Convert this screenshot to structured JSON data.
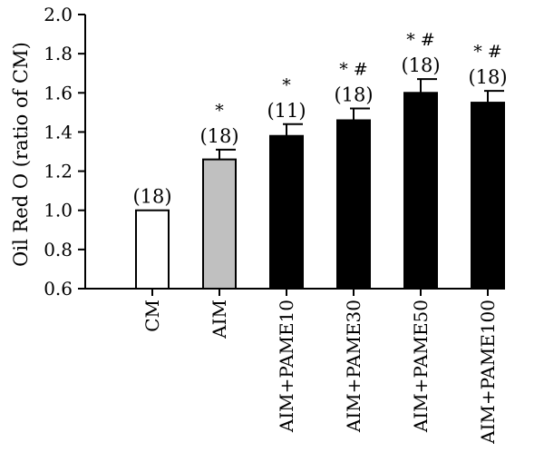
{
  "chart_data": {
    "type": "bar",
    "ylabel": "Oil Red O (ratio of CM)",
    "xlabel": "",
    "ylim": [
      0.6,
      2.0
    ],
    "yticks": [
      0.6,
      0.8,
      1.0,
      1.2,
      1.4,
      1.6,
      1.8,
      2.0
    ],
    "ytick_labels": [
      "0.6",
      "0.8",
      "1.0",
      "1.2",
      "1.4",
      "1.6",
      "1.8",
      "2.0"
    ],
    "grid": false,
    "categories": [
      "CM",
      "AIM",
      "AIM+PAME10",
      "AIM+PAME30",
      "AIM+PAME50",
      "AIM+PAME100"
    ],
    "values": [
      1.0,
      1.26,
      1.38,
      1.46,
      1.6,
      1.55
    ],
    "errors": [
      0.0,
      0.05,
      0.06,
      0.06,
      0.07,
      0.06
    ],
    "n_labels": [
      "(18)",
      "(18)",
      "(11)",
      "(18)",
      "(18)",
      "(18)"
    ],
    "significance": [
      "",
      "*",
      "*",
      "* #",
      "* #",
      "* #"
    ],
    "colors": [
      "#ffffff",
      "#c0c0c0",
      "#000000",
      "#000000",
      "#000000",
      "#000000"
    ]
  }
}
